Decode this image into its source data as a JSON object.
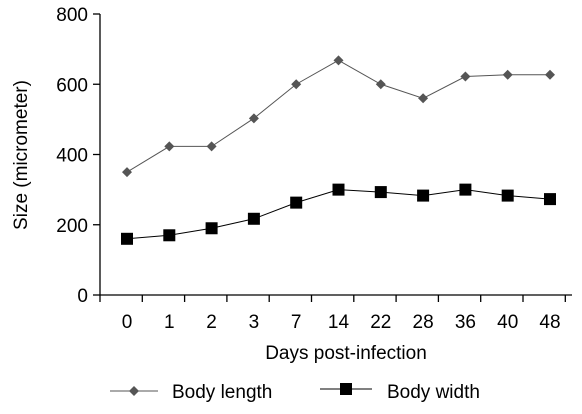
{
  "chart_data": {
    "type": "line",
    "xlabel": "Days post-infection",
    "ylabel": "Size (micrometer)",
    "categories": [
      "0",
      "1",
      "2",
      "3",
      "7",
      "14",
      "22",
      "28",
      "36",
      "40",
      "48"
    ],
    "yticks": [
      "0",
      "200",
      "400",
      "600",
      "800"
    ],
    "ylim": [
      0,
      800
    ],
    "grid": false,
    "legend_position": "bottom",
    "series": [
      {
        "name": "Body length",
        "marker": "diamond",
        "color": "#555555",
        "values": [
          350,
          423,
          423,
          503,
          600,
          668,
          600,
          560,
          622,
          627,
          627
        ]
      },
      {
        "name": "Body width",
        "marker": "square",
        "color": "#000000",
        "values": [
          160,
          170,
          190,
          217,
          263,
          300,
          293,
          283,
          300,
          283,
          273
        ]
      }
    ]
  }
}
